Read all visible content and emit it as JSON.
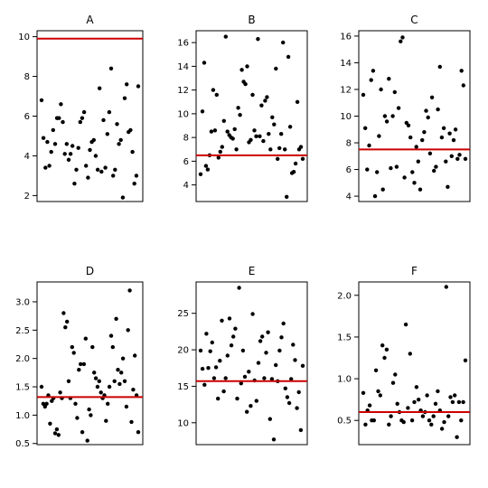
{
  "chart_data": [
    {
      "type": "scatter",
      "title": "A",
      "ylim": [
        1.7,
        10.3
      ],
      "yticks": [
        2,
        4,
        6,
        8,
        10
      ],
      "reference_line": {
        "y": 9.9,
        "color": "#cc0000"
      },
      "y": [
        6.8,
        4.9,
        3.4,
        4.7,
        3.5,
        4.2,
        5.3,
        4.6,
        5.9,
        5.9,
        6.6,
        5.7,
        4.1,
        4.6,
        3.8,
        4.1,
        4.5,
        2.6,
        3.3,
        4.4,
        5.7,
        5.9,
        6.2,
        3.5,
        2.9,
        4.3,
        4.7,
        4.8,
        4.0,
        3.3,
        7.4,
        3.2,
        5.8,
        3.4,
        5.1,
        6.2,
        8.4,
        3.0,
        3.3,
        5.6,
        4.6,
        4.8,
        1.9,
        6.9,
        7.6,
        5.2,
        5.3,
        4.2,
        2.6,
        3.0,
        7.5
      ],
      "xlabel": "",
      "ylabel": ""
    },
    {
      "type": "scatter",
      "title": "B",
      "ylim": [
        2.6,
        17.0
      ],
      "yticks": [
        4,
        6,
        8,
        10,
        12,
        14,
        16
      ],
      "reference_line": {
        "y": 6.5,
        "color": "#cc0000"
      },
      "y": [
        4.9,
        10.2,
        14.3,
        5.6,
        5.3,
        6.5,
        8.5,
        12.0,
        8.6,
        11.6,
        6.3,
        6.8,
        7.2,
        9.4,
        16.5,
        8.5,
        8.2,
        8.0,
        7.9,
        8.7,
        7.0,
        10.5,
        9.9,
        13.7,
        12.7,
        12.5,
        14.0,
        7.6,
        7.8,
        11.6,
        8.6,
        8.1,
        16.3,
        8.1,
        10.7,
        7.7,
        11.1,
        11.4,
        8.3,
        7.0,
        9.7,
        9.1,
        13.8,
        6.2,
        7.1,
        8.3,
        16.0,
        7.0,
        3.0,
        14.8,
        8.9,
        5.0,
        5.1,
        5.8,
        11.0,
        7.0,
        7.2,
        6.2
      ],
      "xlabel": "",
      "ylabel": ""
    },
    {
      "type": "scatter",
      "title": "C",
      "ylim": [
        3.6,
        16.4
      ],
      "yticks": [
        4,
        6,
        8,
        10,
        12,
        14,
        16
      ],
      "reference_line": {
        "y": 7.5,
        "color": "#cc0000"
      },
      "y": [
        11.6,
        9.1,
        6.0,
        7.8,
        12.7,
        13.4,
        4.0,
        5.8,
        8.5,
        12.0,
        4.5,
        10.0,
        9.6,
        12.8,
        6.1,
        10.0,
        11.8,
        6.2,
        10.6,
        15.6,
        15.9,
        5.4,
        9.5,
        9.3,
        8.4,
        5.8,
        5.0,
        7.7,
        6.6,
        4.5,
        8.2,
        8.8,
        10.4,
        9.9,
        7.2,
        11.4,
        5.9,
        6.2,
        10.5,
        13.7,
        8.4,
        9.1,
        6.6,
        4.7,
        8.7,
        7.0,
        8.2,
        9.0,
        6.8,
        7.1,
        13.4,
        12.3,
        6.8
      ],
      "xlabel": "",
      "ylabel": ""
    },
    {
      "type": "scatter",
      "title": "D",
      "ylim": [
        0.48,
        3.35
      ],
      "yticks": [
        0.5,
        1.0,
        1.5,
        2.0,
        2.5,
        3.0
      ],
      "reference_line": {
        "y": 1.32,
        "color": "#cc0000"
      },
      "y": [
        1.5,
        1.2,
        1.15,
        1.2,
        1.35,
        0.85,
        1.25,
        1.3,
        0.68,
        0.75,
        0.65,
        1.4,
        1.3,
        2.8,
        2.55,
        2.65,
        1.6,
        1.3,
        2.2,
        2.1,
        1.2,
        0.95,
        1.8,
        1.9,
        0.7,
        1.9,
        2.35,
        0.55,
        1.1,
        1.0,
        2.2,
        1.75,
        1.65,
        1.5,
        1.6,
        1.4,
        1.3,
        1.35,
        0.9,
        1.2,
        1.5,
        2.4,
        2.2,
        1.6,
        2.7,
        1.8,
        1.55,
        1.75,
        2.0,
        1.6,
        1.15,
        2.5,
        3.2,
        0.88,
        1.45,
        2.05,
        1.35,
        0.7
      ],
      "xlabel": "",
      "ylabel": ""
    },
    {
      "type": "scatter",
      "title": "E",
      "ylim": [
        7.0,
        29.3
      ],
      "yticks": [
        10,
        15,
        20,
        25
      ],
      "reference_line": {
        "y": 15.7,
        "color": "#cc0000"
      },
      "y": [
        19.9,
        17.4,
        15.2,
        22.2,
        17.5,
        19.8,
        21.0,
        16.1,
        17.6,
        13.3,
        18.5,
        24.0,
        14.3,
        16.1,
        19.2,
        24.3,
        20.6,
        21.8,
        22.9,
        13.3,
        28.5,
        15.4,
        19.9,
        16.3,
        11.5,
        17.0,
        12.3,
        24.9,
        15.8,
        13.0,
        18.2,
        21.2,
        21.8,
        16.1,
        19.6,
        22.4,
        10.5,
        16.0,
        7.7,
        17.9,
        15.7,
        19.9,
        21.7,
        23.6,
        14.7,
        13.5,
        12.7,
        16.0,
        20.7,
        18.6,
        12.0,
        14.2,
        9.0,
        17.8
      ],
      "xlabel": "",
      "ylabel": ""
    },
    {
      "type": "scatter",
      "title": "F",
      "ylim": [
        0.21,
        2.16
      ],
      "yticks": [
        0.5,
        1.0,
        1.5,
        2.0
      ],
      "reference_line": {
        "y": 0.6,
        "color": "#cc0000"
      },
      "y": [
        0.83,
        0.45,
        0.62,
        0.68,
        0.5,
        0.5,
        1.1,
        0.85,
        0.8,
        1.4,
        1.25,
        1.35,
        0.45,
        0.55,
        0.95,
        1.05,
        0.7,
        0.6,
        0.5,
        0.48,
        1.65,
        0.65,
        1.3,
        0.5,
        0.72,
        0.9,
        0.75,
        0.62,
        0.55,
        0.6,
        0.8,
        0.5,
        0.45,
        0.55,
        0.7,
        0.85,
        0.62,
        0.4,
        0.48,
        2.1,
        0.55,
        0.78,
        0.72,
        0.8,
        0.3,
        0.72,
        0.5,
        0.72,
        1.22
      ],
      "xlabel": "",
      "ylabel": ""
    }
  ]
}
